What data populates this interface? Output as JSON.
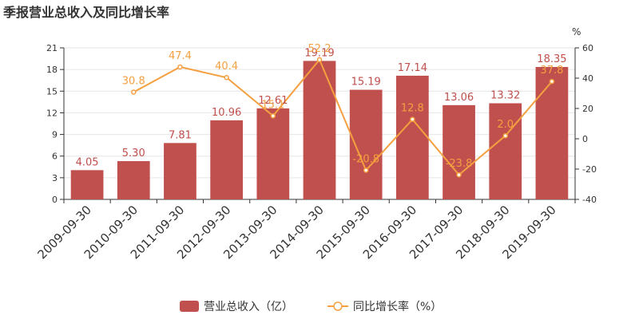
{
  "title": "季报营业总收入及同比增长率",
  "chart_data": {
    "type": "bar",
    "categories": [
      "2009-09-30",
      "2010-09-30",
      "2011-09-30",
      "2012-09-30",
      "2013-09-30",
      "2014-09-30",
      "2015-09-30",
      "2016-09-30",
      "2017-09-30",
      "2018-09-30",
      "2019-09-30"
    ],
    "series": [
      {
        "name": "营业总收入（亿）",
        "type": "bar",
        "axis": "left",
        "color": "#c0504d",
        "values": [
          4.05,
          5.3,
          7.81,
          10.96,
          12.61,
          19.19,
          15.19,
          17.14,
          13.06,
          13.32,
          18.35
        ],
        "labels": [
          "4.05",
          "5.30",
          "7.81",
          "10.96",
          "12.61",
          "19.19",
          "15.19",
          "17.14",
          "13.06",
          "13.32",
          "18.35"
        ]
      },
      {
        "name": "同比增长率（%）",
        "type": "line",
        "axis": "right",
        "color": "#f4a040",
        "values": [
          null,
          30.8,
          47.4,
          40.4,
          15.1,
          52.2,
          -20.8,
          12.8,
          -23.8,
          2.0,
          37.8
        ],
        "labels": [
          "",
          "30.8",
          "47.4",
          "40.4",
          "15.1",
          "52.2",
          "-20.8",
          "12.8",
          "-23.8",
          "2.0",
          "37.8"
        ]
      }
    ],
    "y_left": {
      "range": [
        0,
        21
      ],
      "ticks": [
        "0",
        "3",
        "6",
        "9",
        "12",
        "15",
        "18",
        "21"
      ]
    },
    "y_right": {
      "range": [
        -40,
        60
      ],
      "ticks": [
        "-40",
        "-20",
        "0",
        "20",
        "40",
        "60"
      ],
      "unit": "%"
    },
    "legend_position": "bottom-center",
    "grid": "horizontal"
  }
}
